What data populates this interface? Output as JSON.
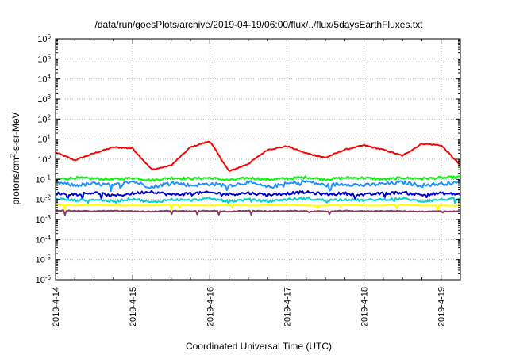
{
  "chart_data": {
    "type": "line",
    "title": "/data/run/goesPlots/archive/2019-04-19/06:00/flux/../flux/5daysEarthFluxes.txt",
    "xlabel": "Coordinated Universal Time (UTC)",
    "ylabel": "protons/cm2-s-sr-MeV",
    "yscale": "log",
    "ylim": [
      1e-06,
      1000000.0
    ],
    "xlim": [
      "2019-04-14 00:00",
      "2019-04-19 06:00"
    ],
    "grid": true,
    "legend": "none",
    "x_ticks": [
      "2019-4-14",
      "2019-4-15",
      "2019-4-16",
      "2019-4-17",
      "2019-4-18",
      "2019-4-19"
    ],
    "y_ticks": [
      {
        "base": "10",
        "exp": "-6"
      },
      {
        "base": "10",
        "exp": "-5"
      },
      {
        "base": "10",
        "exp": "-4"
      },
      {
        "base": "10",
        "exp": "-3"
      },
      {
        "base": "10",
        "exp": "-2"
      },
      {
        "base": "10",
        "exp": "-1"
      },
      {
        "base": "10",
        "exp": "0"
      },
      {
        "base": "10",
        "exp": "1"
      },
      {
        "base": "10",
        "exp": "2"
      },
      {
        "base": "10",
        "exp": "3"
      },
      {
        "base": "10",
        "exp": "4"
      },
      {
        "base": "10",
        "exp": "5"
      },
      {
        "base": "10",
        "exp": "6"
      }
    ],
    "x_days": [
      0,
      0.25,
      0.5,
      0.75,
      1.0,
      1.25,
      1.5,
      1.75,
      2.0,
      2.25,
      2.5,
      2.75,
      3.0,
      3.25,
      3.5,
      3.75,
      4.0,
      4.25,
      4.5,
      4.75,
      5.0,
      5.25
    ],
    "series": [
      {
        "color": "#ff0000",
        "values": [
          2.2,
          0.9,
          2.0,
          4.0,
          3.5,
          0.3,
          0.5,
          4.0,
          8.0,
          0.25,
          0.6,
          3.0,
          4.5,
          2.0,
          1.2,
          3.0,
          5.0,
          3.0,
          1.5,
          6.0,
          5.0,
          0.5
        ]
      },
      {
        "color": "#00ff00",
        "values": [
          0.1,
          0.12,
          0.11,
          0.1,
          0.12,
          0.09,
          0.12,
          0.11,
          0.12,
          0.09,
          0.12,
          0.1,
          0.11,
          0.13,
          0.1,
          0.12,
          0.12,
          0.1,
          0.12,
          0.11,
          0.12,
          0.13
        ]
      },
      {
        "color": "#1e90ff",
        "values": [
          0.07,
          0.05,
          0.06,
          0.05,
          0.08,
          0.04,
          0.07,
          0.05,
          0.06,
          0.05,
          0.07,
          0.04,
          0.06,
          0.08,
          0.05,
          0.06,
          0.05,
          0.06,
          0.07,
          0.05,
          0.06,
          0.07
        ]
      },
      {
        "color": "#0000cd",
        "values": [
          0.02,
          0.018,
          0.022,
          0.015,
          0.02,
          0.025,
          0.017,
          0.02,
          0.022,
          0.018,
          0.021,
          0.017,
          0.02,
          0.023,
          0.018,
          0.02,
          0.017,
          0.02,
          0.022,
          0.017,
          0.02,
          0.018
        ]
      },
      {
        "color": "#00ced1",
        "values": [
          0.011,
          0.009,
          0.01,
          0.008,
          0.011,
          0.007,
          0.01,
          0.009,
          0.011,
          0.008,
          0.01,
          0.008,
          0.01,
          0.011,
          0.009,
          0.01,
          0.009,
          0.01,
          0.011,
          0.008,
          0.01,
          0.011
        ]
      },
      {
        "color": "#ffff00",
        "values": [
          0.0055,
          0.005,
          0.0055,
          0.005,
          0.005,
          0.005,
          0.0055,
          0.005,
          0.005,
          0.0055,
          0.005,
          0.005,
          0.0055,
          0.005,
          0.005,
          0.0055,
          0.005,
          0.005,
          0.0055,
          0.005,
          0.005,
          0.005
        ]
      },
      {
        "color": "#8b3a62",
        "values": [
          0.0028,
          0.0027,
          0.0026,
          0.0027,
          0.0026,
          0.0025,
          0.0027,
          0.0026,
          0.0027,
          0.0025,
          0.0027,
          0.0026,
          0.0027,
          0.0026,
          0.0025,
          0.0027,
          0.0026,
          0.0027,
          0.0026,
          0.0025,
          0.0026,
          0.0025
        ]
      }
    ]
  }
}
